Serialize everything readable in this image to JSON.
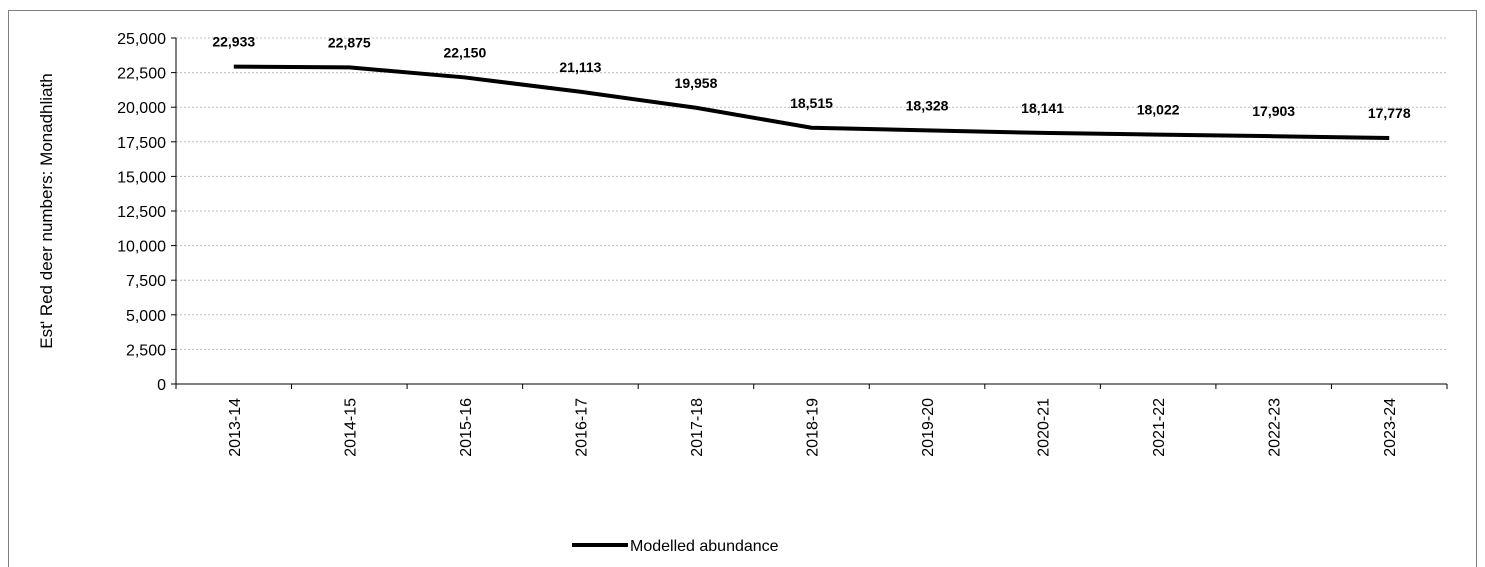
{
  "chart_data": {
    "type": "line",
    "title": "",
    "xlabel": "",
    "ylabel": "Est' Red deer numbers: Monadhliath",
    "categories": [
      "2013-14",
      "2014-15",
      "2015-16",
      "2016-17",
      "2017-18",
      "2018-19",
      "2019-20",
      "2020-21",
      "2021-22",
      "2022-23",
      "2023-24"
    ],
    "series": [
      {
        "name": "Modelled abundance",
        "values": [
          22933,
          22875,
          22150,
          21113,
          19958,
          18515,
          18328,
          18141,
          18022,
          17903,
          17778
        ],
        "data_labels": [
          "22,933",
          "22,875",
          "22,150",
          "21,113",
          "19,958",
          "18,515",
          "18,328",
          "18,141",
          "18,022",
          "17,903",
          "17,778"
        ],
        "color": "#000000"
      }
    ],
    "ylim": [
      0,
      25000
    ],
    "yticks": [
      0,
      2500,
      5000,
      7500,
      10000,
      12500,
      15000,
      17500,
      20000,
      22500,
      25000
    ],
    "ytick_labels": [
      "0",
      "2,500",
      "5,000",
      "7,500",
      "10,000",
      "12,500",
      "15,000",
      "17,500",
      "20,000",
      "22,500",
      "25,000"
    ],
    "grid": true,
    "legend_position": "bottom-center"
  }
}
